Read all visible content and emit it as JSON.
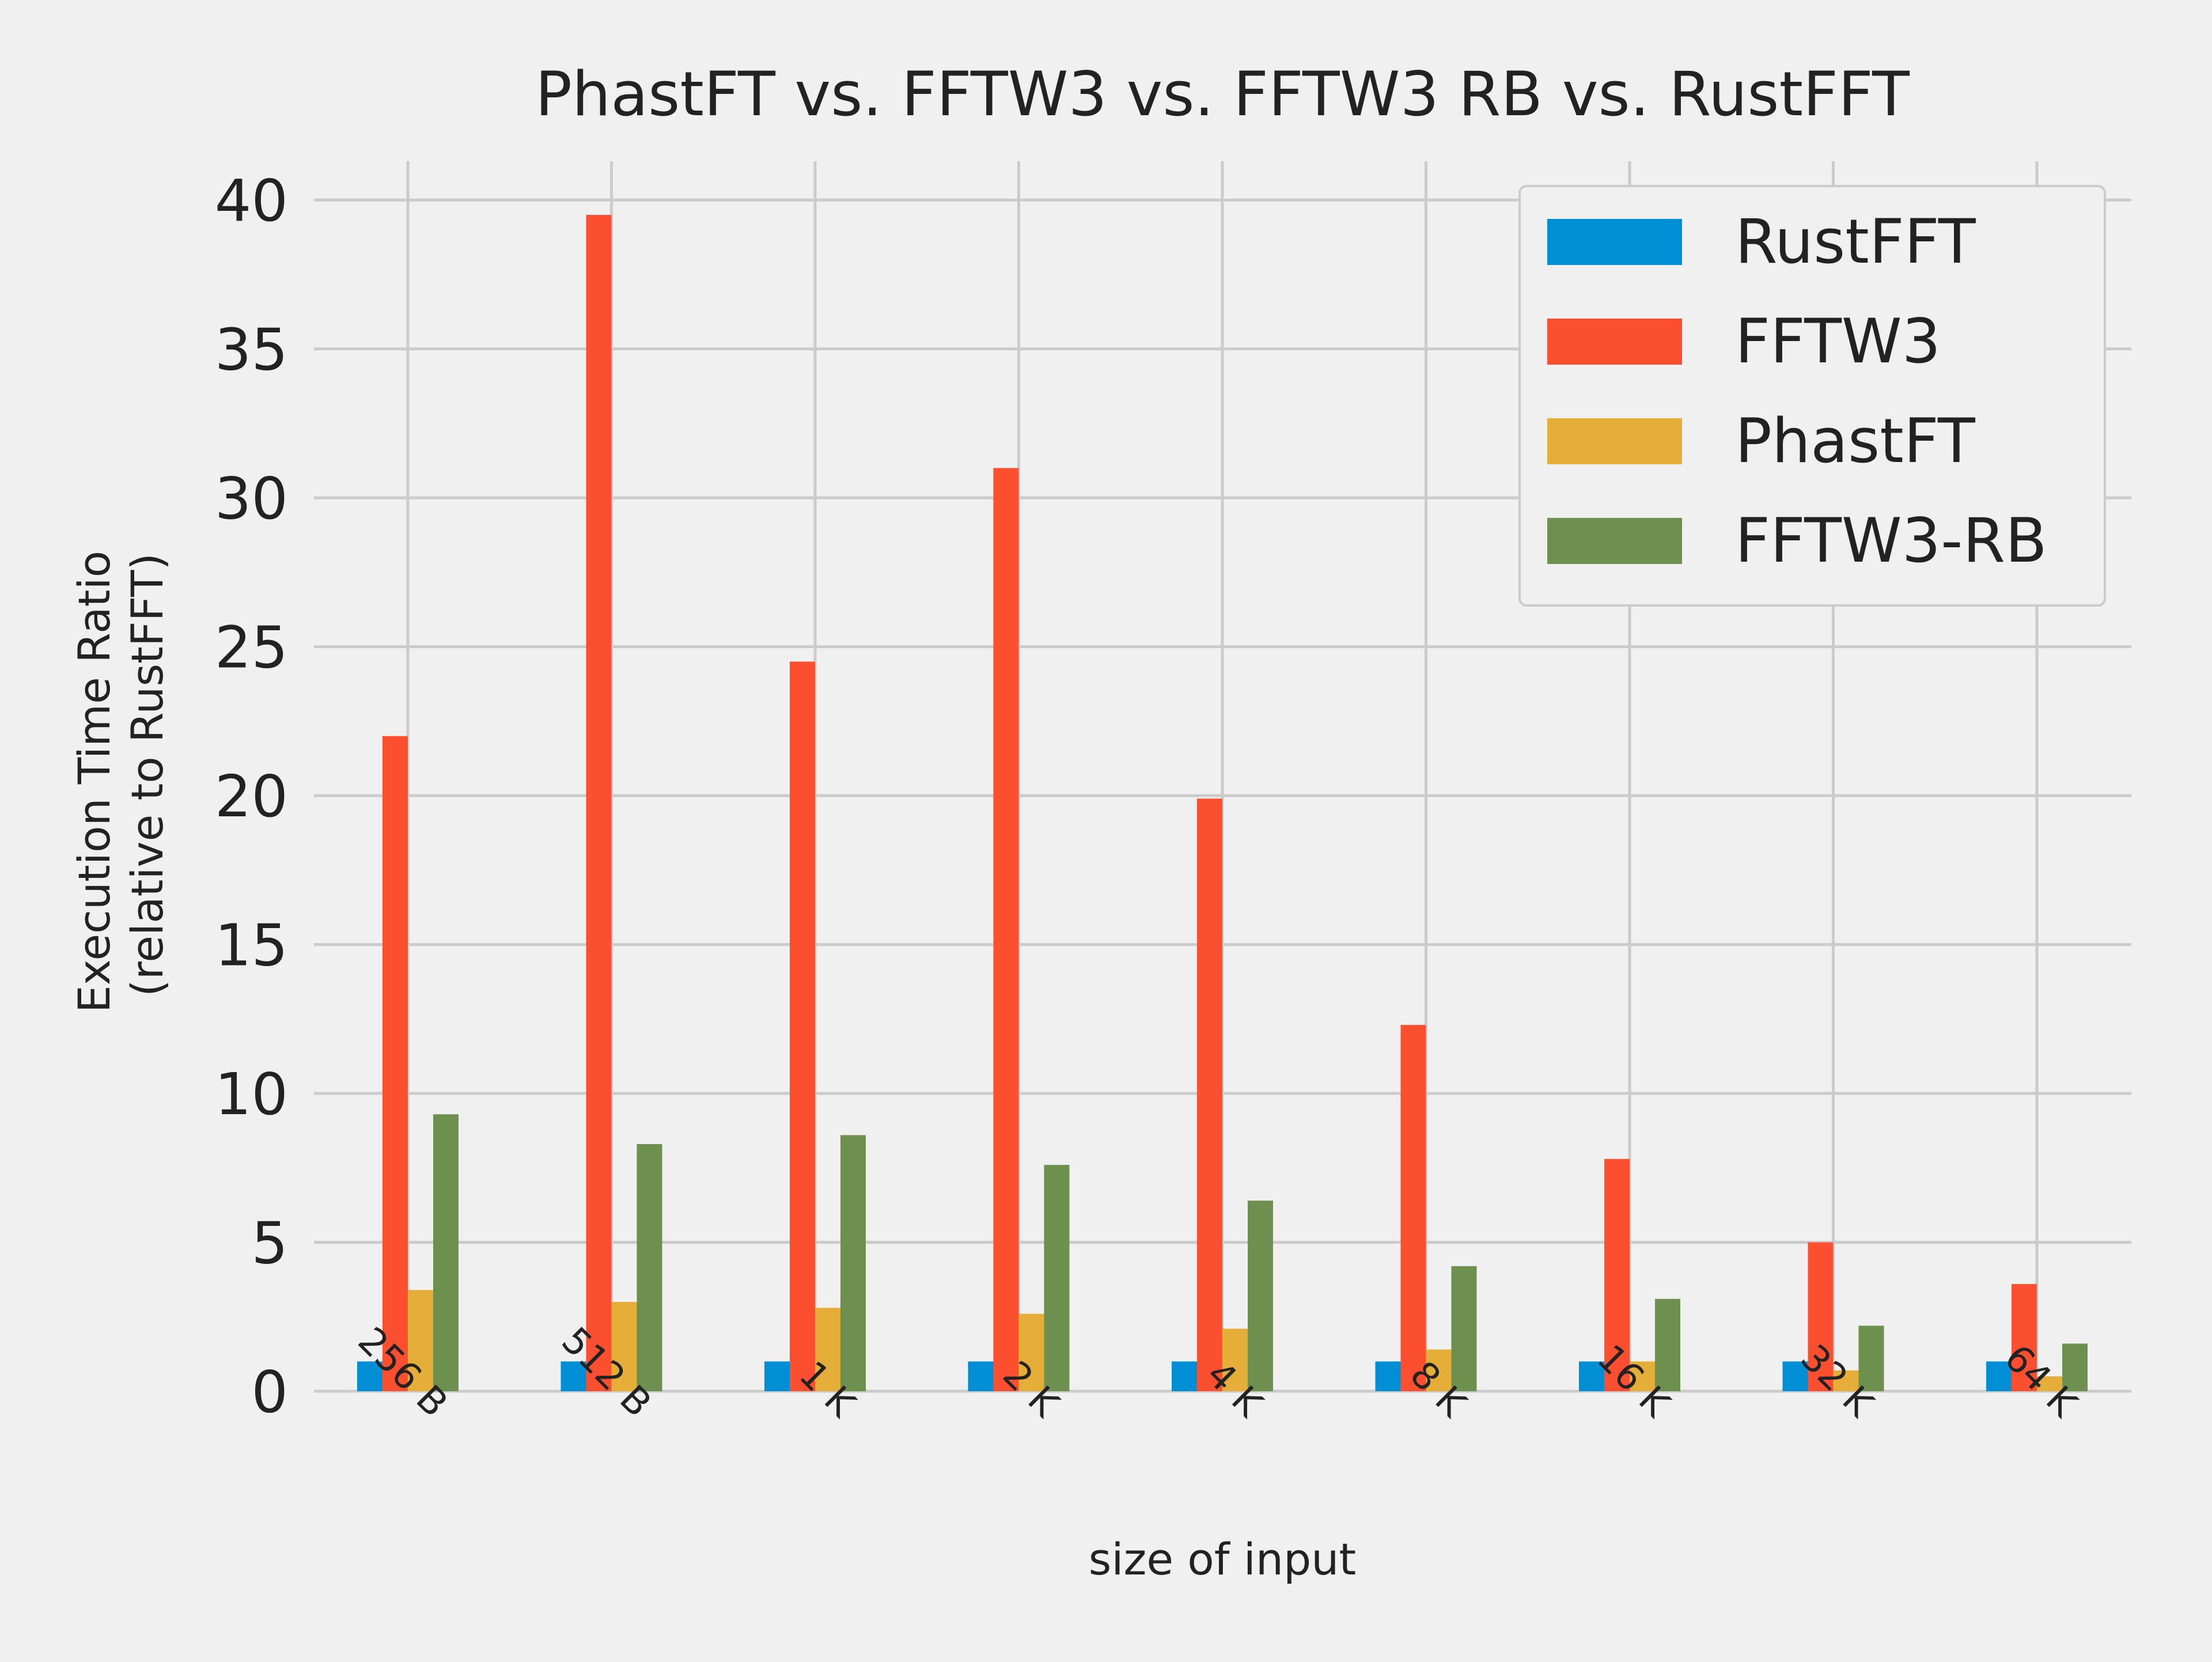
{
  "chart_data": {
    "type": "bar",
    "title": "PhastFT vs. FFTW3 vs. FFTW3 RB vs. RustFFT",
    "xlabel": "size of input",
    "ylabel_line1": "Execution Time Ratio",
    "ylabel_line2": "(relative to RustFFT)",
    "ylim": [
      0,
      41.3
    ],
    "yticks": [
      0,
      5,
      10,
      15,
      20,
      25,
      30,
      35,
      40
    ],
    "grid": true,
    "legend_position": "top-right",
    "categories": [
      "256 B",
      "512 B",
      "1 K",
      "2 K",
      "4 K",
      "8 K",
      "16 K",
      "32 K",
      "64 K"
    ],
    "series": [
      {
        "name": "RustFFT",
        "color": "#008fd5",
        "values": [
          1,
          1,
          1,
          1,
          1,
          1,
          1,
          1,
          1
        ]
      },
      {
        "name": "FFTW3",
        "color": "#fc4f30",
        "values": [
          22.0,
          39.5,
          24.5,
          31.0,
          19.9,
          12.3,
          7.8,
          5.0,
          3.6
        ]
      },
      {
        "name": "PhastFT",
        "color": "#e5ae38",
        "values": [
          3.4,
          3.0,
          2.8,
          2.6,
          2.1,
          1.4,
          1.0,
          0.7,
          0.5
        ]
      },
      {
        "name": "FFTW3-RB",
        "color": "#6d904f",
        "values": [
          9.3,
          8.3,
          8.6,
          7.6,
          6.4,
          4.2,
          3.1,
          2.2,
          1.6
        ]
      }
    ]
  }
}
